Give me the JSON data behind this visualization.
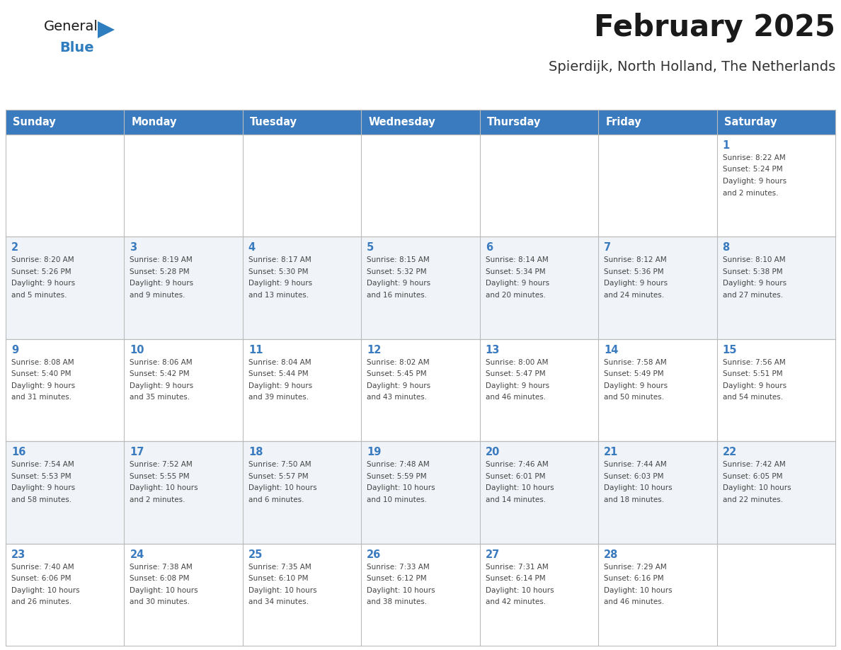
{
  "title": "February 2025",
  "subtitle": "Spierdijk, North Holland, The Netherlands",
  "days_of_week": [
    "Sunday",
    "Monday",
    "Tuesday",
    "Wednesday",
    "Thursday",
    "Friday",
    "Saturday"
  ],
  "header_bg": "#3A7BBF",
  "header_text": "#FFFFFF",
  "cell_bg_light": "#FFFFFF",
  "cell_bg_dark": "#F0F4F8",
  "cell_border": "#BBBBBB",
  "day_num_color": "#3A7BBF",
  "info_text_color": "#444444",
  "title_color": "#1A1A1A",
  "subtitle_color": "#333333",
  "logo_general_color": "#1A1A1A",
  "logo_blue_color": "#2E7DBF",
  "calendar": [
    [
      null,
      null,
      null,
      null,
      null,
      null,
      {
        "day": 1,
        "sunrise": "8:22 AM",
        "sunset": "5:24 PM",
        "daylight": "9 hours and 2 minutes."
      }
    ],
    [
      {
        "day": 2,
        "sunrise": "8:20 AM",
        "sunset": "5:26 PM",
        "daylight": "9 hours and 5 minutes."
      },
      {
        "day": 3,
        "sunrise": "8:19 AM",
        "sunset": "5:28 PM",
        "daylight": "9 hours and 9 minutes."
      },
      {
        "day": 4,
        "sunrise": "8:17 AM",
        "sunset": "5:30 PM",
        "daylight": "9 hours and 13 minutes."
      },
      {
        "day": 5,
        "sunrise": "8:15 AM",
        "sunset": "5:32 PM",
        "daylight": "9 hours and 16 minutes."
      },
      {
        "day": 6,
        "sunrise": "8:14 AM",
        "sunset": "5:34 PM",
        "daylight": "9 hours and 20 minutes."
      },
      {
        "day": 7,
        "sunrise": "8:12 AM",
        "sunset": "5:36 PM",
        "daylight": "9 hours and 24 minutes."
      },
      {
        "day": 8,
        "sunrise": "8:10 AM",
        "sunset": "5:38 PM",
        "daylight": "9 hours and 27 minutes."
      }
    ],
    [
      {
        "day": 9,
        "sunrise": "8:08 AM",
        "sunset": "5:40 PM",
        "daylight": "9 hours and 31 minutes."
      },
      {
        "day": 10,
        "sunrise": "8:06 AM",
        "sunset": "5:42 PM",
        "daylight": "9 hours and 35 minutes."
      },
      {
        "day": 11,
        "sunrise": "8:04 AM",
        "sunset": "5:44 PM",
        "daylight": "9 hours and 39 minutes."
      },
      {
        "day": 12,
        "sunrise": "8:02 AM",
        "sunset": "5:45 PM",
        "daylight": "9 hours and 43 minutes."
      },
      {
        "day": 13,
        "sunrise": "8:00 AM",
        "sunset": "5:47 PM",
        "daylight": "9 hours and 46 minutes."
      },
      {
        "day": 14,
        "sunrise": "7:58 AM",
        "sunset": "5:49 PM",
        "daylight": "9 hours and 50 minutes."
      },
      {
        "day": 15,
        "sunrise": "7:56 AM",
        "sunset": "5:51 PM",
        "daylight": "9 hours and 54 minutes."
      }
    ],
    [
      {
        "day": 16,
        "sunrise": "7:54 AM",
        "sunset": "5:53 PM",
        "daylight": "9 hours and 58 minutes."
      },
      {
        "day": 17,
        "sunrise": "7:52 AM",
        "sunset": "5:55 PM",
        "daylight": "10 hours and 2 minutes."
      },
      {
        "day": 18,
        "sunrise": "7:50 AM",
        "sunset": "5:57 PM",
        "daylight": "10 hours and 6 minutes."
      },
      {
        "day": 19,
        "sunrise": "7:48 AM",
        "sunset": "5:59 PM",
        "daylight": "10 hours and 10 minutes."
      },
      {
        "day": 20,
        "sunrise": "7:46 AM",
        "sunset": "6:01 PM",
        "daylight": "10 hours and 14 minutes."
      },
      {
        "day": 21,
        "sunrise": "7:44 AM",
        "sunset": "6:03 PM",
        "daylight": "10 hours and 18 minutes."
      },
      {
        "day": 22,
        "sunrise": "7:42 AM",
        "sunset": "6:05 PM",
        "daylight": "10 hours and 22 minutes."
      }
    ],
    [
      {
        "day": 23,
        "sunrise": "7:40 AM",
        "sunset": "6:06 PM",
        "daylight": "10 hours and 26 minutes."
      },
      {
        "day": 24,
        "sunrise": "7:38 AM",
        "sunset": "6:08 PM",
        "daylight": "10 hours and 30 minutes."
      },
      {
        "day": 25,
        "sunrise": "7:35 AM",
        "sunset": "6:10 PM",
        "daylight": "10 hours and 34 minutes."
      },
      {
        "day": 26,
        "sunrise": "7:33 AM",
        "sunset": "6:12 PM",
        "daylight": "10 hours and 38 minutes."
      },
      {
        "day": 27,
        "sunrise": "7:31 AM",
        "sunset": "6:14 PM",
        "daylight": "10 hours and 42 minutes."
      },
      {
        "day": 28,
        "sunrise": "7:29 AM",
        "sunset": "6:16 PM",
        "daylight": "10 hours and 46 minutes."
      },
      null
    ]
  ]
}
